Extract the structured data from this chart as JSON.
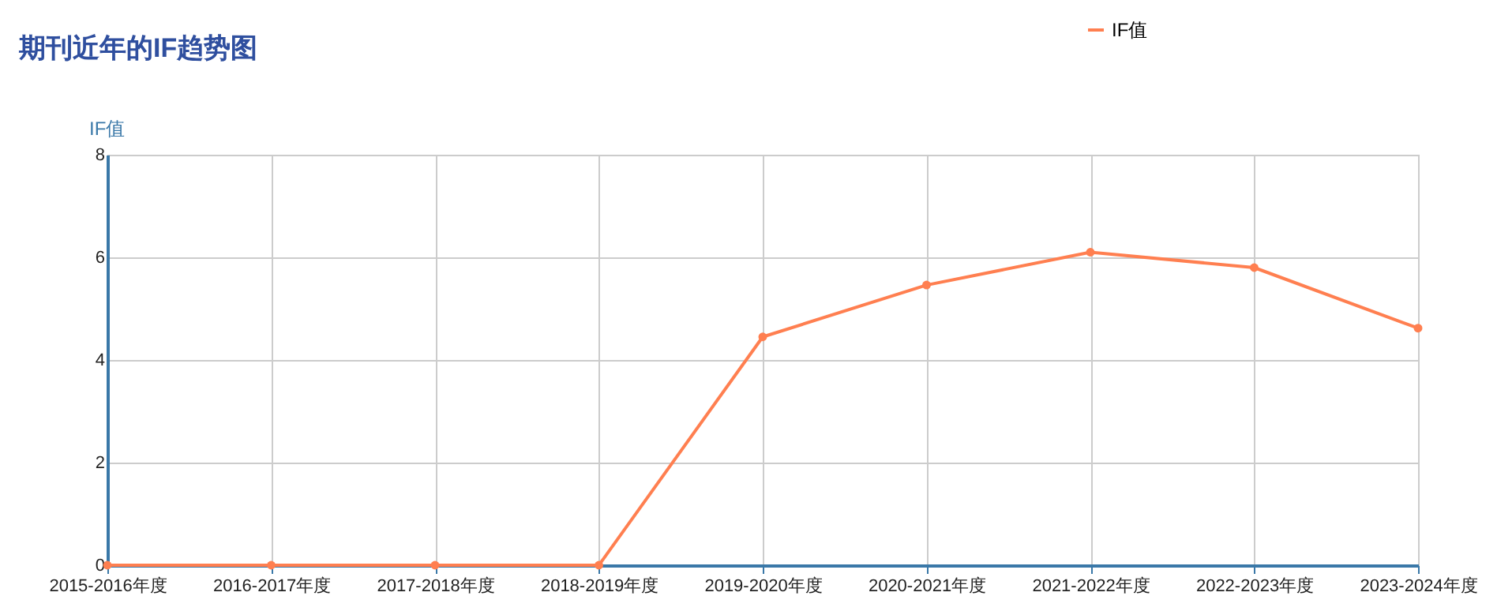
{
  "chart_data": {
    "type": "line",
    "title": "期刊近年的IF趋势图",
    "ylabel": "IF值",
    "categories": [
      "2015-2016年度",
      "2016-2017年度",
      "2017-2018年度",
      "2018-2019年度",
      "2019-2020年度",
      "2020-2021年度",
      "2021-2022年度",
      "2022-2023年度",
      "2023-2024年度"
    ],
    "series": [
      {
        "name": "IF值",
        "color": "#ff7f50",
        "values": [
          0,
          0,
          0,
          0,
          4.45,
          5.46,
          6.1,
          5.8,
          4.62
        ]
      }
    ],
    "ylim": [
      0,
      8
    ],
    "yticks": [
      0,
      2,
      4,
      6,
      8
    ],
    "grid": true,
    "legend": "top right",
    "marker": "circle",
    "line_style": "solid"
  }
}
